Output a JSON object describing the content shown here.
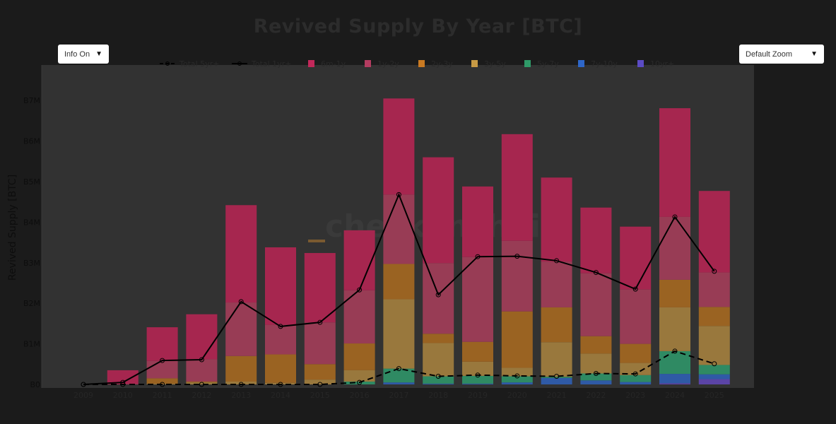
{
  "title": "Revived Supply By Year [BTC]",
  "controls": {
    "info_dropdown": {
      "selected": "Info On",
      "arrow": "▼"
    },
    "zoom_dropdown": {
      "selected": "Default Zoom",
      "arrow": "▼"
    }
  },
  "watermark": "checkonchain",
  "colors": {
    "page_bg": "#1b1b1b",
    "plot_bg": "#323232",
    "6m-1y": "#a6264f",
    "1y-2y": "#983c55",
    "2y-3y": "#9a6322",
    "3y-5y": "#99783d",
    "5y-7y": "#2f8a63",
    "7y-10y": "#2f5aa6",
    "10yr+": "#5b44a6",
    "line": "#000000"
  },
  "chart_data": {
    "type": "bar",
    "stacked": true,
    "title": "Revived Supply By Year [BTC]",
    "xlabel": "",
    "ylabel": "Revived Supply [BTC]",
    "ylim": [
      0,
      7900000
    ],
    "y_ticks": [
      "B0",
      "B1M",
      "B2M",
      "B3M",
      "B4M",
      "B5M",
      "B6M",
      "B7M"
    ],
    "y_tick_values": [
      0,
      1000000,
      2000000,
      3000000,
      4000000,
      5000000,
      6000000,
      7000000
    ],
    "grid": false,
    "legend_position": "top",
    "categories": [
      "2009",
      "2010",
      "2011",
      "2012",
      "2013",
      "2014",
      "2015",
      "2016",
      "2017",
      "2018",
      "2019",
      "2020",
      "2021",
      "2022",
      "2023",
      "2024",
      "2025"
    ],
    "series": [
      {
        "name": "10yr+",
        "kind": "bar",
        "color": "#5b44a6",
        "values": [
          0,
          0,
          0,
          0,
          0,
          0,
          0,
          0,
          0,
          0,
          0,
          0,
          0,
          0,
          0,
          30000,
          130000
        ]
      },
      {
        "name": "7y-10y",
        "kind": "bar",
        "color": "#2f5aa6",
        "values": [
          0,
          0,
          0,
          0,
          0,
          0,
          0,
          0,
          50000,
          20000,
          20000,
          50000,
          160000,
          100000,
          60000,
          230000,
          120000
        ]
      },
      {
        "name": "5y-7y",
        "kind": "bar",
        "color": "#2f8a63",
        "values": [
          0,
          0,
          0,
          0,
          0,
          0,
          0,
          70000,
          340000,
          180000,
          190000,
          150000,
          30000,
          170000,
          170000,
          560000,
          230000
        ]
      },
      {
        "name": "3y-5y",
        "kind": "bar",
        "color": "#99783d",
        "values": [
          0,
          0,
          20000,
          50000,
          70000,
          40000,
          120000,
          280000,
          1710000,
          820000,
          350000,
          210000,
          850000,
          490000,
          300000,
          1080000,
          960000
        ]
      },
      {
        "name": "2y-3y",
        "kind": "bar",
        "color": "#9a6322",
        "values": [
          0,
          0,
          130000,
          20000,
          630000,
          700000,
          380000,
          660000,
          870000,
          230000,
          490000,
          1390000,
          860000,
          430000,
          470000,
          680000,
          470000
        ]
      },
      {
        "name": "1y-2y",
        "kind": "bar",
        "color": "#983c55",
        "values": [
          0,
          10000,
          430000,
          550000,
          1320000,
          730000,
          1030000,
          1310000,
          1710000,
          1740000,
          2090000,
          1740000,
          1130000,
          1550000,
          1340000,
          1550000,
          850000
        ]
      },
      {
        "name": "6m-1y",
        "kind": "bar",
        "color": "#a6264f",
        "values": [
          0,
          340000,
          830000,
          1110000,
          2400000,
          1910000,
          1710000,
          1480000,
          2370000,
          2610000,
          1740000,
          2630000,
          2070000,
          1620000,
          1550000,
          2680000,
          2010000
        ]
      },
      {
        "name": "Total 1yr+",
        "kind": "line",
        "dash": false,
        "color": "#000000",
        "values": [
          0,
          50000,
          590000,
          610000,
          2040000,
          1430000,
          1530000,
          2330000,
          4680000,
          2210000,
          3150000,
          3160000,
          3050000,
          2760000,
          2350000,
          4130000,
          2790000
        ]
      },
      {
        "name": "Total 5yr+",
        "kind": "line",
        "dash": true,
        "color": "#000000",
        "values": [
          0,
          0,
          0,
          0,
          0,
          0,
          0,
          50000,
          390000,
          200000,
          230000,
          210000,
          200000,
          270000,
          260000,
          820000,
          510000
        ]
      }
    ],
    "legend": [
      {
        "label": "Total 5yr+",
        "type": "line-dash"
      },
      {
        "label": "Total 1yr+",
        "type": "line"
      },
      {
        "label": "6m-1y",
        "color": "#c2285a"
      },
      {
        "label": "1y-2y",
        "color": "#b33c60"
      },
      {
        "label": "2y-3y",
        "color": "#c97a22"
      },
      {
        "label": "3y-5y",
        "color": "#c79a45"
      },
      {
        "label": "5y-7y",
        "color": "#2f9a68"
      },
      {
        "label": "7y-10y",
        "color": "#2e66c8"
      },
      {
        "label": "10yr+",
        "color": "#5b4bc4"
      }
    ]
  }
}
